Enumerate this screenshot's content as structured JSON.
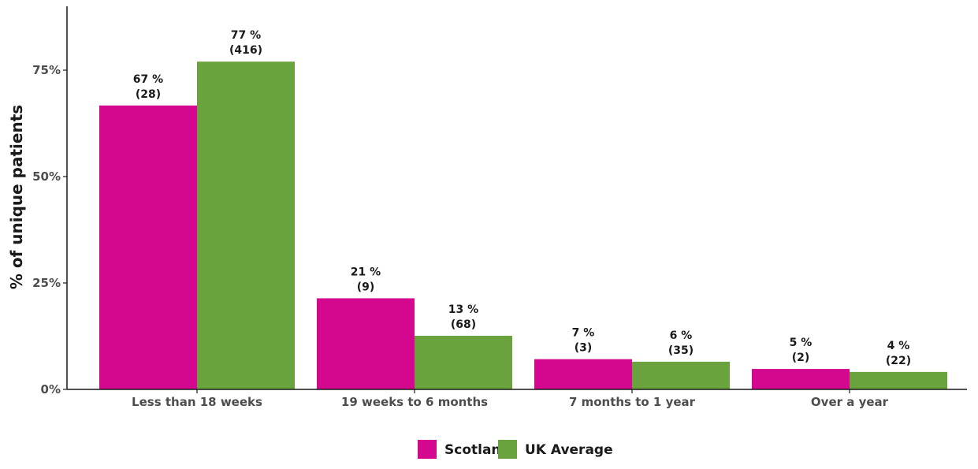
{
  "chart_data": {
    "type": "bar",
    "categories": [
      "Less than 18 weeks",
      "19 weeks to 6 months",
      "7 months to 1 year",
      "Over a year"
    ],
    "series": [
      {
        "name": "Scotland",
        "color": "#d4088f",
        "values": [
          66.7,
          21.4,
          7.1,
          4.8
        ],
        "labels": [
          [
            "67 %",
            "(28)"
          ],
          [
            "21 %",
            "(9)"
          ],
          [
            "7 %",
            "(3)"
          ],
          [
            "5 %",
            "(2)"
          ]
        ]
      },
      {
        "name": "UK Average",
        "color": "#6aa33d",
        "values": [
          77.0,
          12.6,
          6.5,
          4.1
        ],
        "labels": [
          [
            "77 %",
            "(416)"
          ],
          [
            "13 %",
            "(68)"
          ],
          [
            "6 %",
            "(35)"
          ],
          [
            "4 %",
            "(22)"
          ]
        ]
      }
    ],
    "ylabel": "% of unique patients",
    "xlabel": "",
    "ylim": [
      0,
      90
    ],
    "yticks": [
      0,
      25,
      50,
      75
    ],
    "ytick_labels": [
      "0%",
      "25%",
      "50%",
      "75%"
    ],
    "legend_position": "bottom",
    "grid": false
  }
}
